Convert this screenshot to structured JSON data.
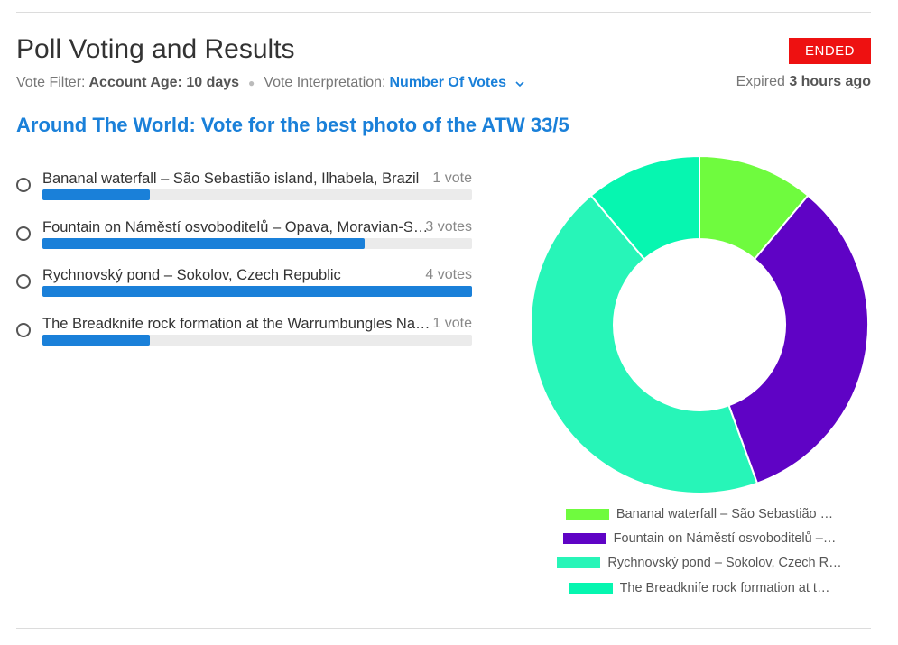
{
  "header": {
    "title": "Poll Voting and Results",
    "status": "ENDED",
    "vote_filter_label": "Vote Filter:",
    "vote_filter_value": "Account Age: 10 days",
    "interpretation_label": "Vote Interpretation:",
    "interpretation_value": "Number Of Votes",
    "expiry_prefix": "Expired",
    "expiry_value": "3 hours ago"
  },
  "poll": {
    "title": "Around The World: Vote for the best photo of the ATW 33/5",
    "options": [
      {
        "label": "Bananal waterfall – São Sebastião island, Ilhabela, Brazil",
        "votes_text": "1 vote",
        "votes": 1
      },
      {
        "label": "Fountain on Náměstí osvoboditelů – Opava, Moravian-Silesian Region, Czech Republic",
        "votes_text": "3 votes",
        "votes": 3
      },
      {
        "label": "Rychnovský pond – Sokolov, Czech Republic",
        "votes_text": "4 votes",
        "votes": 4
      },
      {
        "label": "The Breadknife rock formation at the Warrumbungles National Park, Australia",
        "votes_text": "1 vote",
        "votes": 1
      }
    ],
    "max_votes": 4
  },
  "chart_data": {
    "type": "pie",
    "categories": [
      "Bananal waterfall – São Sebastião …",
      "Fountain on Náměstí osvoboditelů –…",
      "Rychnovský pond – Sokolov, Czech R…",
      "The Breadknife rock formation at t…"
    ],
    "values": [
      1,
      3,
      4,
      1
    ],
    "colors": [
      "#6ffb3e",
      "#5f03c5",
      "#27f5b8",
      "#06f6b0"
    ],
    "donut": true,
    "legend_position": "bottom"
  },
  "colors": {
    "accent": "#1a80d9",
    "status_ended": "#ee1111"
  },
  "icons": {
    "interpretation_dropdown": "chevron-down-icon"
  }
}
